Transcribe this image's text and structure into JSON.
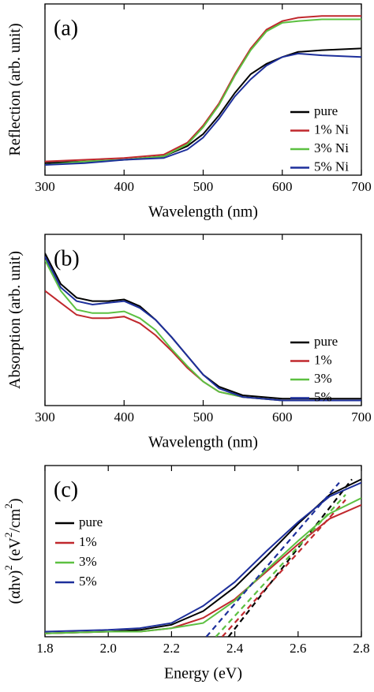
{
  "chart_data": [
    {
      "type": "line",
      "label": "(a)",
      "xlabel": "Wavelength (nm)",
      "ylabel_parts": [
        "Reflection (arb. unit)"
      ],
      "ylabel_superscript": [
        false
      ],
      "x": [
        300,
        350,
        400,
        450,
        480,
        500,
        520,
        540,
        560,
        580,
        600,
        620,
        650,
        700
      ],
      "xlim": [
        300,
        700
      ],
      "xticks": [
        300,
        400,
        500,
        600,
        700
      ],
      "ylim": [
        0,
        1
      ],
      "legend": "lower-right",
      "series": [
        {
          "name": "pure",
          "color": "#000000",
          "values": [
            0.07,
            0.08,
            0.09,
            0.11,
            0.17,
            0.24,
            0.35,
            0.48,
            0.59,
            0.65,
            0.69,
            0.72,
            0.73,
            0.74
          ]
        },
        {
          "name": "1% Ni",
          "color": "#c0282d",
          "values": [
            0.08,
            0.09,
            0.1,
            0.12,
            0.19,
            0.29,
            0.42,
            0.59,
            0.74,
            0.85,
            0.9,
            0.92,
            0.93,
            0.93
          ]
        },
        {
          "name": "3% Ni",
          "color": "#5cc041",
          "values": [
            0.06,
            0.08,
            0.09,
            0.11,
            0.18,
            0.28,
            0.41,
            0.58,
            0.73,
            0.84,
            0.89,
            0.9,
            0.91,
            0.91
          ]
        },
        {
          "name": "5% Ni",
          "color": "#1d2f9b",
          "values": [
            0.06,
            0.07,
            0.09,
            0.1,
            0.15,
            0.22,
            0.33,
            0.46,
            0.56,
            0.64,
            0.69,
            0.71,
            0.7,
            0.69
          ]
        }
      ]
    },
    {
      "type": "line",
      "label": "(b)",
      "xlabel": "Wavelength (nm)",
      "ylabel_parts": [
        "Absorption (arb. unit)"
      ],
      "ylabel_superscript": [
        false
      ],
      "x": [
        300,
        320,
        340,
        360,
        380,
        400,
        420,
        440,
        460,
        480,
        500,
        520,
        550,
        600,
        700
      ],
      "xlim": [
        300,
        700
      ],
      "xticks": [
        300,
        400,
        500,
        600,
        700
      ],
      "ylim": [
        0,
        1
      ],
      "legend": "lower-right",
      "series": [
        {
          "name": "pure",
          "color": "#000000",
          "values": [
            0.89,
            0.71,
            0.63,
            0.61,
            0.61,
            0.62,
            0.58,
            0.5,
            0.4,
            0.29,
            0.18,
            0.11,
            0.06,
            0.04,
            0.04
          ]
        },
        {
          "name": "1%",
          "color": "#c0282d",
          "values": [
            0.67,
            0.6,
            0.53,
            0.51,
            0.51,
            0.52,
            0.48,
            0.41,
            0.32,
            0.22,
            0.14,
            0.08,
            0.05,
            0.03,
            0.03
          ]
        },
        {
          "name": "3%",
          "color": "#5cc041",
          "values": [
            0.85,
            0.67,
            0.56,
            0.54,
            0.54,
            0.55,
            0.51,
            0.44,
            0.33,
            0.23,
            0.14,
            0.08,
            0.05,
            0.03,
            0.03
          ]
        },
        {
          "name": "5%",
          "color": "#1d2f9b",
          "values": [
            0.87,
            0.69,
            0.61,
            0.59,
            0.6,
            0.61,
            0.57,
            0.5,
            0.4,
            0.29,
            0.18,
            0.1,
            0.05,
            0.03,
            0.03
          ]
        }
      ]
    },
    {
      "type": "line",
      "label": "(c)",
      "xlabel": "Energy (eV)",
      "ylabel_parts": [
        "(αhν)",
        "2",
        " (eV",
        "2",
        "/cm",
        "2",
        ")"
      ],
      "ylabel_superscript": [
        false,
        true,
        false,
        true,
        false,
        true,
        false
      ],
      "x": [
        1.8,
        2.0,
        2.1,
        2.2,
        2.3,
        2.4,
        2.5,
        2.6,
        2.7,
        2.8
      ],
      "xlim": [
        1.8,
        2.8
      ],
      "xticks": [
        {
          "value": 1.8,
          "label": "1.8"
        },
        {
          "value": 2.0,
          "label": "2.0"
        },
        {
          "value": 2.2,
          "label": "2.2"
        },
        {
          "value": 2.4,
          "label": "2.4"
        },
        {
          "value": 2.6,
          "label": "2.6"
        },
        {
          "value": 2.8,
          "label": "2.8"
        }
      ],
      "ylim": [
        0,
        1
      ],
      "legend": "upper-left",
      "series": [
        {
          "name": "pure",
          "color": "#000000",
          "values": [
            0.02,
            0.03,
            0.04,
            0.07,
            0.15,
            0.29,
            0.47,
            0.66,
            0.83,
            0.92
          ],
          "tangent_x": [
            2.38,
            2.77
          ],
          "tangent_values": [
            0,
            0.92
          ]
        },
        {
          "name": "1%",
          "color": "#c0282d",
          "values": [
            0.02,
            0.03,
            0.03,
            0.05,
            0.11,
            0.22,
            0.38,
            0.54,
            0.69,
            0.77
          ],
          "tangent_x": [
            2.36,
            2.75
          ],
          "tangent_values": [
            0,
            0.8
          ]
        },
        {
          "name": "3%",
          "color": "#5cc041",
          "values": [
            0.02,
            0.03,
            0.03,
            0.05,
            0.08,
            0.21,
            0.39,
            0.56,
            0.72,
            0.81
          ],
          "tangent_x": [
            2.34,
            2.75
          ],
          "tangent_values": [
            0,
            0.83
          ]
        },
        {
          "name": "5%",
          "color": "#1d2f9b",
          "values": [
            0.03,
            0.04,
            0.05,
            0.08,
            0.18,
            0.32,
            0.5,
            0.67,
            0.82,
            0.9
          ],
          "tangent_x": [
            2.31,
            2.73
          ],
          "tangent_values": [
            0,
            0.9
          ]
        }
      ]
    }
  ]
}
